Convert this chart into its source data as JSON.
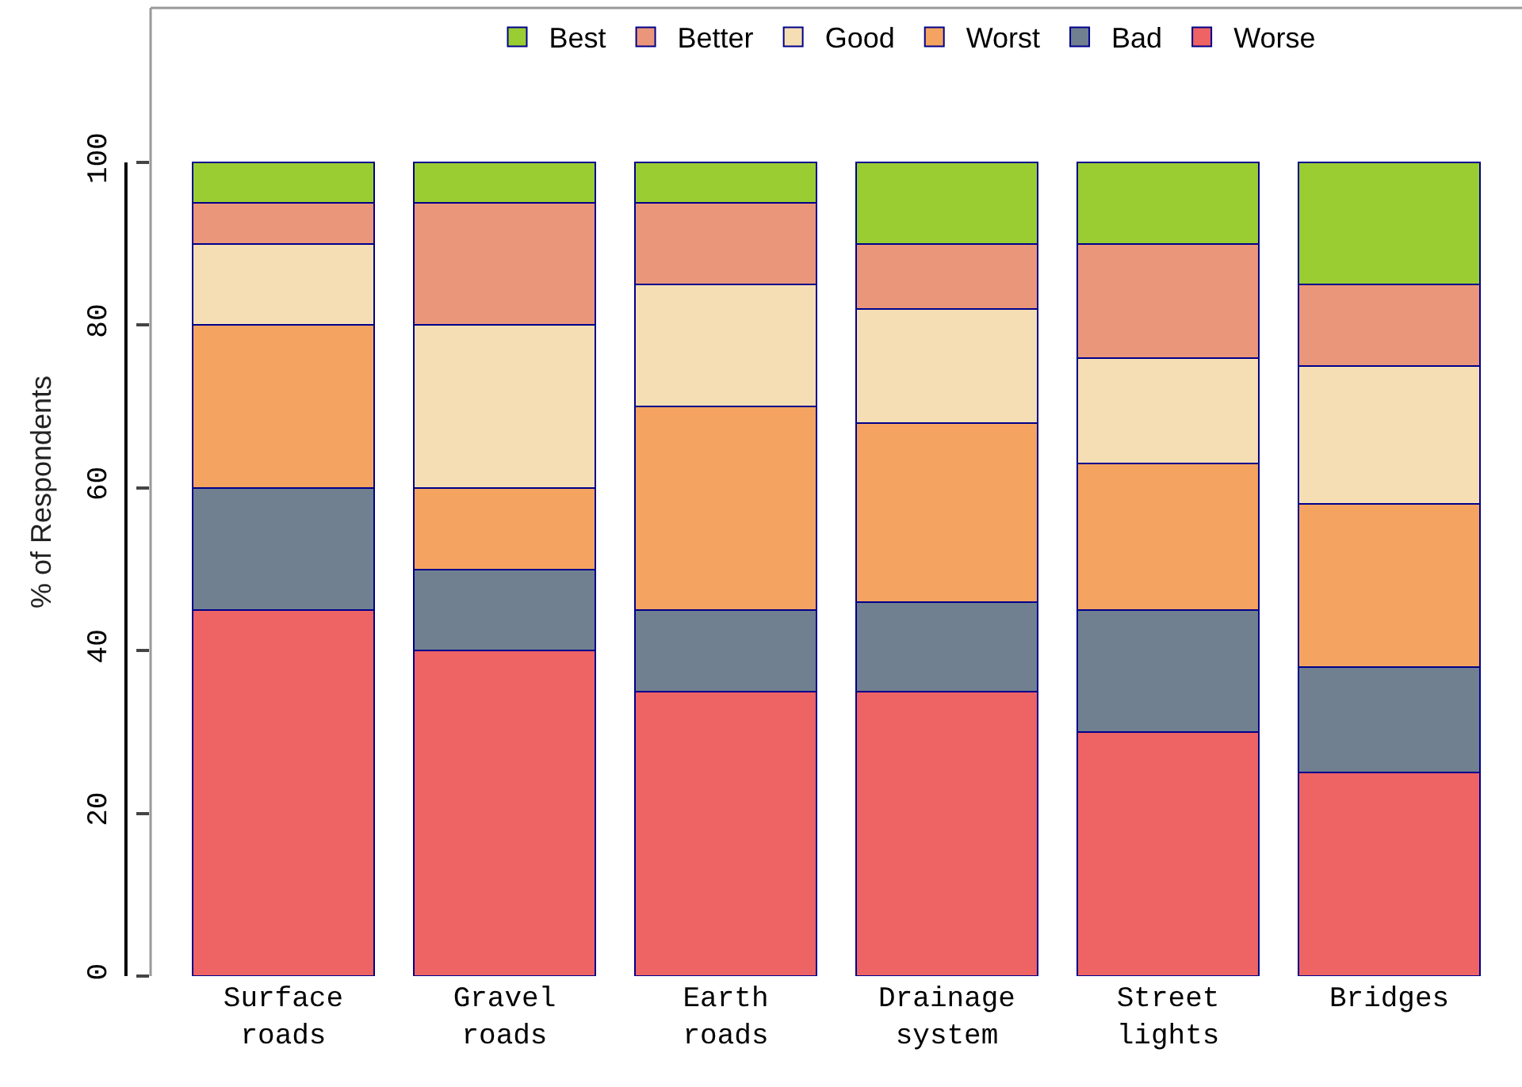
{
  "chart_data": {
    "type": "bar",
    "stacked": true,
    "ylabel": "% of Respondents",
    "categories": [
      "Surface\nroads",
      "Gravel\nroads",
      "Earth\nroads",
      "Drainage\nsystem",
      "Street\nlights",
      "Bridges"
    ],
    "series": [
      {
        "name": "Worse",
        "color": "#ee6363",
        "values": [
          45,
          40,
          35,
          35,
          30,
          25
        ]
      },
      {
        "name": "Bad",
        "color": "#708090",
        "values": [
          15,
          10,
          10,
          11,
          15,
          13
        ]
      },
      {
        "name": "Worst",
        "color": "#f4a460",
        "values": [
          20,
          10,
          25,
          22,
          18,
          20
        ]
      },
      {
        "name": "Good",
        "color": "#f5deb3",
        "values": [
          10,
          20,
          15,
          14,
          13,
          17
        ]
      },
      {
        "name": "Better",
        "color": "#e9967a",
        "values": [
          5,
          15,
          10,
          8,
          14,
          10
        ]
      },
      {
        "name": "Best",
        "color": "#9acd32",
        "values": [
          5,
          5,
          5,
          10,
          10,
          15
        ]
      }
    ],
    "ylim": [
      0,
      119
    ],
    "yticks": [
      0,
      20,
      40,
      60,
      80,
      100
    ],
    "legend": "top"
  }
}
